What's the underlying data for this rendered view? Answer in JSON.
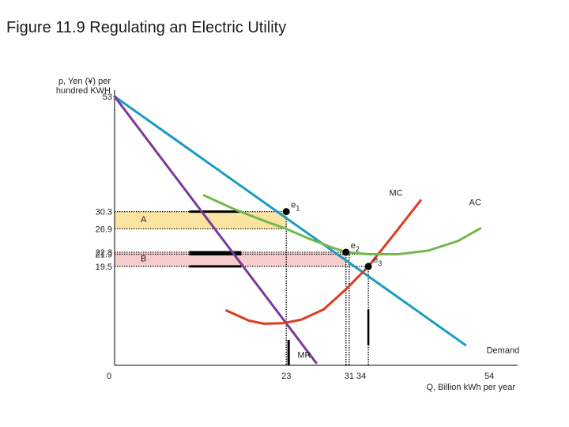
{
  "title": "Figure 11.9  Regulating an Electric Utility",
  "chart_data": {
    "type": "line",
    "ylabel_lines": [
      "p, Yen (¥) per",
      "hundred KWH"
    ],
    "xlabel": "Q, Billion kWh per year",
    "xlim": [
      0,
      54
    ],
    "ylim": [
      0,
      53
    ],
    "x_ticks": [
      {
        "value": 0,
        "label": "0"
      },
      {
        "value": 23,
        "label": "23"
      },
      {
        "value": 31,
        "label": "31  34"
      },
      {
        "value": 54,
        "label": "54"
      }
    ],
    "y_ticks": [
      {
        "value": 53,
        "label": "53"
      },
      {
        "value": 30.3,
        "label": "30.3"
      },
      {
        "value": 26.9,
        "label": "26.9"
      },
      {
        "value": 22.3,
        "label": "22.3"
      },
      {
        "value": 21.9,
        "label": "21.9"
      },
      {
        "value": 19.5,
        "label": "19.5"
      }
    ],
    "series": [
      {
        "name": "Demand",
        "color": "#1a9bc4",
        "points": [
          [
            0,
            53
          ],
          [
            47,
            4
          ]
        ]
      },
      {
        "name": "MR",
        "color": "#7b3a96",
        "points": [
          [
            0,
            53
          ],
          [
            27,
            0.5
          ]
        ]
      },
      {
        "name": "MC",
        "color": "#e03a1e",
        "points": [
          [
            15,
            10.8
          ],
          [
            18,
            8.8
          ],
          [
            20,
            8.2
          ],
          [
            22.5,
            8.3
          ],
          [
            25,
            9
          ],
          [
            28,
            11
          ],
          [
            31,
            15
          ],
          [
            34,
            19.5
          ],
          [
            37,
            25
          ],
          [
            41,
            32.5
          ]
        ]
      },
      {
        "name": "AC",
        "color": "#74b84a",
        "points": [
          [
            12,
            33.5
          ],
          [
            16,
            30.8
          ],
          [
            20,
            28.5
          ],
          [
            23,
            26.9
          ],
          [
            26,
            25
          ],
          [
            29,
            23.3
          ],
          [
            31,
            22.3
          ],
          [
            34,
            21.9
          ],
          [
            38,
            21.9
          ],
          [
            42,
            22.6
          ],
          [
            46,
            24.5
          ],
          [
            49,
            27
          ]
        ]
      }
    ],
    "points": [
      {
        "name": "e1",
        "label_base": "e",
        "label_sub": "1",
        "x": 23,
        "y": 30.3
      },
      {
        "name": "e2",
        "label_base": "e",
        "label_sub": "2",
        "x": 31,
        "y": 22.3
      },
      {
        "name": "e3",
        "label_base": "e",
        "label_sub": "3",
        "x": 34,
        "y": 19.5
      }
    ],
    "areas": [
      {
        "name": "A",
        "label": "A",
        "color": "#fbe3a1",
        "x0": 0,
        "x1": 23,
        "y0": 26.9,
        "y1": 30.3
      },
      {
        "name": "B",
        "label": "B",
        "color": "#f7cccc",
        "x0": 0,
        "x1": 31,
        "y0": 19.5,
        "y1": 22.3
      }
    ],
    "guide_lines": [
      {
        "x": 23,
        "y": 30.3
      },
      {
        "x": 31,
        "y": 22.3
      },
      {
        "x": 34,
        "y": 19.5
      },
      {
        "x": 23,
        "y": 26.9
      },
      {
        "x": 34,
        "y": 21.9
      }
    ]
  }
}
